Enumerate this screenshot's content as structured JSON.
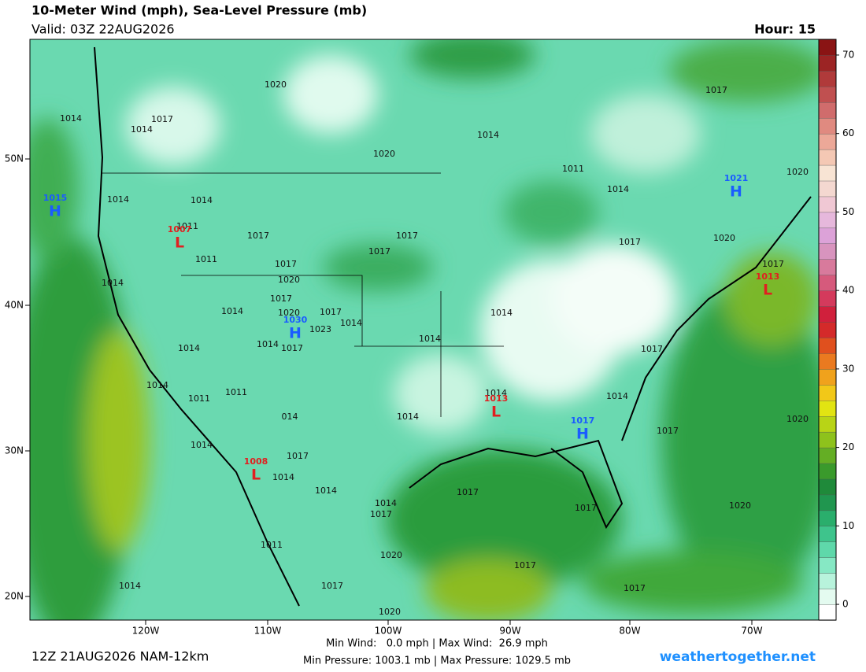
{
  "header": {
    "title": "10-Meter Wind (mph), Sea-Level Pressure (mb)",
    "valid": "Valid: 03Z 22AUG2026",
    "hour": "Hour: 15"
  },
  "axes": {
    "longitudes": [
      "120W",
      "110W",
      "100W",
      "90W",
      "80W",
      "70W"
    ],
    "latitudes": [
      "50N",
      "40N",
      "30N",
      "20N"
    ]
  },
  "colorbar": {
    "lim": [
      -2,
      72
    ],
    "ticks": [
      0,
      10,
      20,
      30,
      40,
      50,
      60,
      70
    ],
    "colors": [
      "#ffffff",
      "#e4fbf0",
      "#b8f3dc",
      "#86e8c4",
      "#5fd8aa",
      "#3ec48c",
      "#2aae6c",
      "#20964f",
      "#1f8a3a",
      "#3a9a2c",
      "#64ae24",
      "#8ec21c",
      "#b8d416",
      "#e2e412",
      "#f2c818",
      "#f0a21c",
      "#ea7a20",
      "#e0501e",
      "#d42a2a",
      "#d0203c",
      "#d43a5c",
      "#d65a7c",
      "#d87a9c",
      "#d894be",
      "#dca2d8",
      "#e6b8dc",
      "#f0c8d4",
      "#f4d8d0",
      "#f8e4d4",
      "#f4c8b4",
      "#eca898",
      "#e08a80",
      "#d06c6c",
      "#c05050",
      "#b03a3a",
      "#9c2424",
      "#8a1414"
    ]
  },
  "highs_lows": [
    {
      "letter": "H",
      "pressure": "1015",
      "kind": "high"
    },
    {
      "letter": "L",
      "pressure": "1007",
      "kind": "low"
    },
    {
      "letter": "H",
      "pressure": "1030",
      "kind": "high"
    },
    {
      "letter": "L",
      "pressure": "1013",
      "kind": "low"
    },
    {
      "letter": "H",
      "pressure": "1017",
      "kind": "high"
    },
    {
      "letter": "L",
      "pressure": "1008",
      "kind": "low"
    },
    {
      "letter": "H",
      "pressure": "1021",
      "kind": "high"
    },
    {
      "letter": "L",
      "pressure": "1013",
      "kind": "low"
    }
  ],
  "isobar_labels": [
    "1020",
    "1014",
    "1017",
    "1014",
    "1020",
    "1014",
    "1017",
    "1011",
    "1014",
    "1020",
    "1014",
    "1014",
    "1011",
    "1017",
    "1017",
    "1017",
    "1011",
    "1017",
    "1020",
    "1014",
    "1017",
    "1020",
    "1017",
    "1017",
    "1014",
    "1020",
    "1017",
    "1014",
    "1023",
    "1014",
    "1014",
    "1014",
    "1017",
    "1014",
    "1017",
    "1014",
    "1011",
    "1011",
    "1014",
    "1014",
    "1014",
    "014",
    "1020",
    "1017",
    "1014",
    "1017",
    "1014",
    "1014",
    "1017",
    "1017",
    "1014",
    "1017",
    "1020",
    "1011",
    "1020",
    "1017",
    "1014",
    "1017",
    "1017",
    "1020"
  ],
  "footer": {
    "run": "12Z 21AUG2026 NAM-12km",
    "wind_stats": "Min Wind:   0.0 mph | Max Wind:  26.9 mph",
    "pressure_stats": "Min Pressure: 1003.1 mb | Max Pressure: 1029.5 mb",
    "site": "weathertogether.net"
  }
}
